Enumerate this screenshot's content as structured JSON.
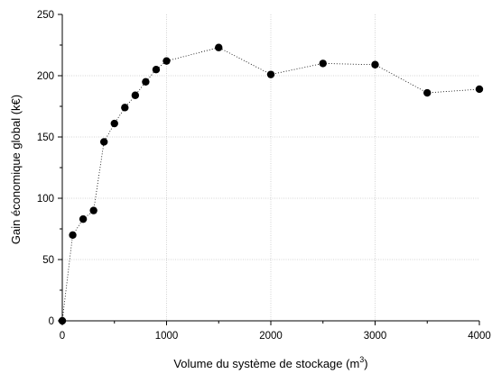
{
  "chart_data": {
    "type": "scatter",
    "line_style": "dotted",
    "marker": "filled-circle",
    "xlabel": "Volume du système de stockage (m",
    "xlabel_superscript": "3",
    "xlabel_suffix": ")",
    "ylabel": "Gain économique global (k€)",
    "xlim": [
      0,
      4000
    ],
    "ylim": [
      0,
      250
    ],
    "xticks": [
      "0",
      "1000",
      "2000",
      "3000",
      "4000"
    ],
    "yticks": [
      "0",
      "50",
      "100",
      "150",
      "200",
      "250"
    ],
    "grid": true,
    "colors": {
      "marker": "#000000",
      "line": "#000000",
      "grid": "#c8c8c8"
    },
    "series": [
      {
        "x": [
          0,
          100,
          200,
          300,
          400,
          500,
          600,
          700,
          800,
          900,
          1000,
          1500,
          2000,
          2500,
          3000,
          3500,
          4000
        ],
        "y": [
          0,
          70,
          83,
          90,
          146,
          161,
          174,
          184,
          195,
          205,
          212,
          223,
          201,
          210,
          209,
          186,
          189
        ]
      }
    ]
  }
}
